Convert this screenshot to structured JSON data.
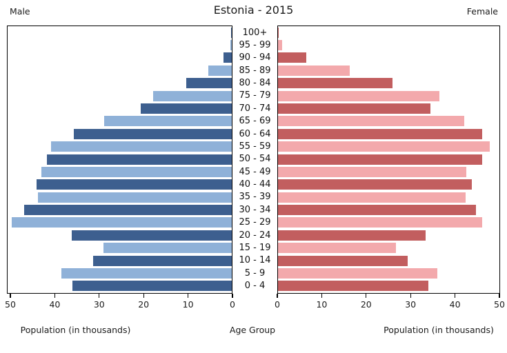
{
  "header": {
    "title": "Estonia - 2015",
    "left_label": "Male",
    "right_label": "Female"
  },
  "captions": {
    "male_axis": "Population (in thousands)",
    "center_axis": "Age Group",
    "female_axis": "Population (in thousands)"
  },
  "colors": {
    "male_dark": "#3d5f8f",
    "male_light": "#8fb1d8",
    "female_dark": "#c25e5f",
    "female_light": "#f3a9ac",
    "axis": "#000000",
    "text": "#1a1a1a"
  },
  "chart_data": {
    "type": "bar",
    "subtype": "population-pyramid",
    "title": "Estonia - 2015",
    "order": "top-to-bottom",
    "categories": [
      "100+",
      "95 - 99",
      "90 - 94",
      "85 - 89",
      "80 - 84",
      "75 - 79",
      "70 - 74",
      "65 - 69",
      "60 - 64",
      "55 - 59",
      "50 - 54",
      "45 - 49",
      "40 - 44",
      "35 - 39",
      "30 - 34",
      "25 - 29",
      "20 - 24",
      "15 - 19",
      "10 - 14",
      "5 - 9",
      "0 - 4"
    ],
    "series": [
      {
        "name": "Male",
        "side": "left",
        "values": [
          0.1,
          0.3,
          1.9,
          5.3,
          10.2,
          17.7,
          20.5,
          28.7,
          35.6,
          40.7,
          41.6,
          42.9,
          43.9,
          43.7,
          46.7,
          49.5,
          36.0,
          28.9,
          31.2,
          38.4,
          35.9
        ]
      },
      {
        "name": "Female",
        "side": "right",
        "values": [
          0.2,
          1.0,
          6.3,
          16.1,
          25.7,
          36.4,
          34.3,
          41.9,
          46.0,
          47.7,
          46.0,
          42.4,
          43.6,
          42.2,
          44.6,
          46.0,
          33.3,
          26.6,
          29.2,
          35.9,
          33.9
        ]
      }
    ],
    "xlabel_left": "Population (in thousands)",
    "xlabel_right": "Population (in thousands)",
    "center_label": "Age Group",
    "xlim": [
      0,
      50
    ],
    "male_ticks": [
      50,
      40,
      30,
      20,
      10,
      0
    ],
    "female_ticks": [
      0,
      10,
      20,
      30,
      40,
      50
    ],
    "grid": false,
    "legend": "none",
    "bar_color_pattern": "alternating dark/light per row, dark on even rows from top"
  }
}
